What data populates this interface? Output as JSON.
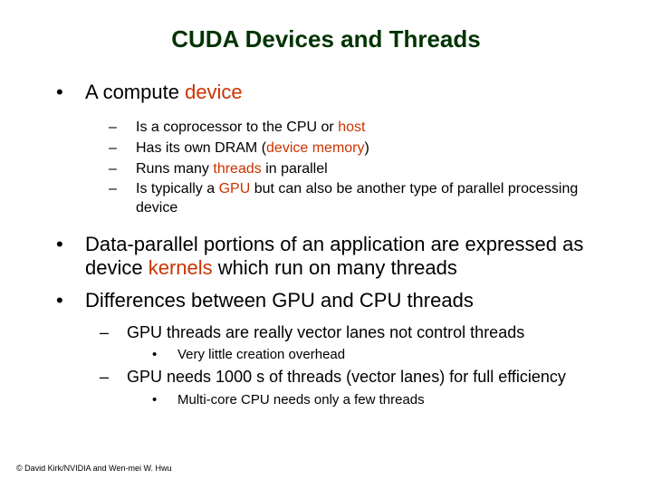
{
  "title": "CUDA Devices and Threads",
  "b1": {
    "text_a": "A compute ",
    "text_em": "device",
    "sub": {
      "s1_a": "Is a coprocessor to the CPU or ",
      "s1_em": "host",
      "s2_a": "Has its own DRAM (",
      "s2_em": "device memory",
      "s2_b": ")",
      "s3_a": "Runs many ",
      "s3_em": "threads",
      "s3_b": " in parallel",
      "s4_a": "Is typically a ",
      "s4_em": "GPU",
      "s4_b": " but can also be another type of  parallel processing device"
    }
  },
  "b2": {
    "text_a": "Data-parallel portions of an application are expressed as device ",
    "text_em": "kernels",
    "text_b": " which run on many threads"
  },
  "b3": {
    "text": "Differences between GPU and CPU threads",
    "sub": {
      "s1": "GPU threads are really vector lanes not control threads",
      "s1_sub": "Very little creation overhead",
      "s2": "GPU needs 1000 s of threads (vector lanes) for full efficiency",
      "s2_sub": "Multi-core CPU needs only a few threads"
    }
  },
  "footer": "© David Kirk/NVIDIA and Wen-mei W. Hwu",
  "markers": {
    "l1": "•",
    "l2": "–",
    "l3": "•"
  },
  "colors": {
    "title": "#003300",
    "emphasis": "#cc3300",
    "text": "#000000",
    "background": "#ffffff"
  }
}
